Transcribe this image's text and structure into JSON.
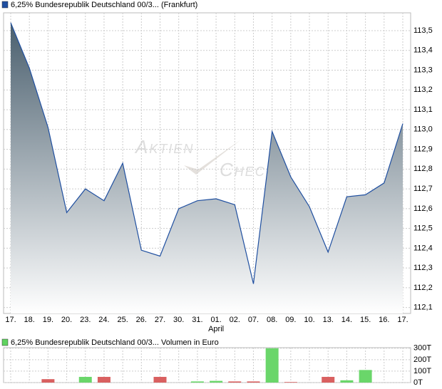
{
  "chart_data": [
    {
      "type": "area",
      "legend": "6,25% Bundesrepublik Deutschland 00/3... (Frankfurt)",
      "legend_color": "#1f4fa0",
      "watermark": [
        "Aktien",
        "Chec"
      ],
      "month_label": "April",
      "categories": [
        "17.",
        "18.",
        "19.",
        "20.",
        "23.",
        "24.",
        "25.",
        "26.",
        "27.",
        "30.",
        "31.",
        "01.",
        "02.",
        "07.",
        "08.",
        "09.",
        "10.",
        "13.",
        "14.",
        "15.",
        "16.",
        "17."
      ],
      "values": [
        113.54,
        113.31,
        113.01,
        112.58,
        112.7,
        112.64,
        112.83,
        112.39,
        112.36,
        112.6,
        112.64,
        112.65,
        112.62,
        112.22,
        112.99,
        112.76,
        112.61,
        112.38,
        112.66,
        112.67,
        112.73,
        113.03
      ],
      "color": "#1f4fa0",
      "ylim": [
        112.07,
        113.59
      ],
      "yticks": [
        {
          "value": 112.1,
          "label": "112,1"
        },
        {
          "value": 112.2,
          "label": "112,2"
        },
        {
          "value": 112.3,
          "label": "112,3"
        },
        {
          "value": 112.4,
          "label": "112,4"
        },
        {
          "value": 112.5,
          "label": "112,5"
        },
        {
          "value": 112.6,
          "label": "112,6"
        },
        {
          "value": 112.7,
          "label": "112,7"
        },
        {
          "value": 112.8,
          "label": "112,8"
        },
        {
          "value": 112.9,
          "label": "112,9"
        },
        {
          "value": 113.0,
          "label": "113,0"
        },
        {
          "value": 113.1,
          "label": "113,1"
        },
        {
          "value": 113.2,
          "label": "113,2"
        },
        {
          "value": 113.3,
          "label": "113,3"
        },
        {
          "value": 113.4,
          "label": "113,4"
        },
        {
          "value": 113.5,
          "label": "113,5"
        }
      ],
      "grid": true
    },
    {
      "type": "bar",
      "legend": "6,25% Bundesrepublik Deutschland 00/3... Volumen in Euro",
      "legend_color": "#5fd35f",
      "values": [
        0,
        0,
        30,
        0,
        50,
        50,
        0,
        0,
        50,
        0,
        10,
        15,
        10,
        10,
        300,
        5,
        0,
        50,
        20,
        110,
        0,
        0
      ],
      "colors": [
        "#d96060",
        "#d96060",
        "#d96060",
        "#d96060",
        "#6ad66a",
        "#d96060",
        "#6ad66a",
        "#d96060",
        "#d96060",
        "#6ad66a",
        "#6ad66a",
        "#6ad66a",
        "#d96060",
        "#d96060",
        "#6ad66a",
        "#d96060",
        "#d96060",
        "#d96060",
        "#6ad66a",
        "#6ad66a",
        "#6ad66a",
        "#6ad66a"
      ],
      "ylim": [
        0,
        305
      ],
      "yticks": [
        {
          "value": 0,
          "label": "0T"
        },
        {
          "value": 100,
          "label": "100T"
        },
        {
          "value": 200,
          "label": "200T"
        },
        {
          "value": 300,
          "label": "300T"
        }
      ],
      "grid": true
    }
  ]
}
